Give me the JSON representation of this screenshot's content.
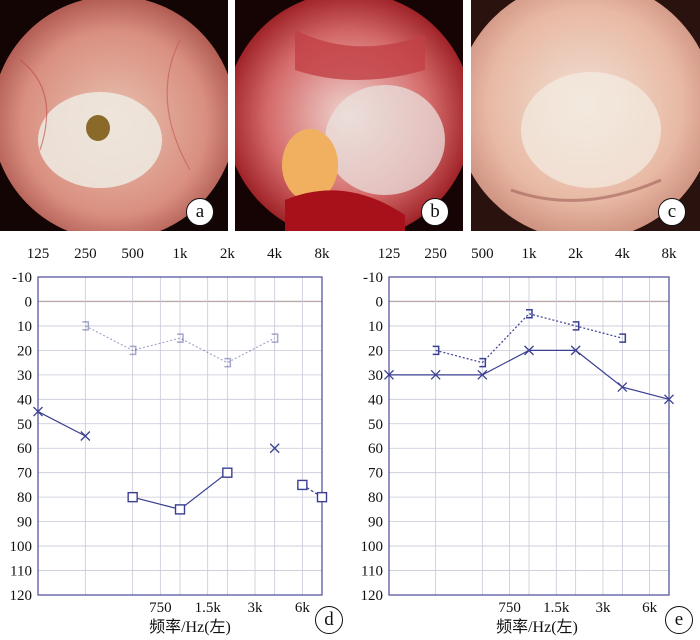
{
  "photos": [
    {
      "label": "a"
    },
    {
      "label": "b"
    },
    {
      "label": "c"
    }
  ],
  "colors": {
    "series": "#3a3f8f",
    "grid": "#c8c8d8",
    "frame": "#4a4a9a",
    "zero_line": "#b9a9a9"
  },
  "chart_data": [
    {
      "type": "line",
      "panel_label": "d",
      "x_top_ticks": [
        "125",
        "250",
        "500",
        "1k",
        "2k",
        "4k",
        "8k"
      ],
      "x_bottom_ticks": [
        "750",
        "1.5k",
        "3k",
        "6k"
      ],
      "y_ticks": [
        "-10",
        "0",
        "10",
        "20",
        "30",
        "40",
        "50",
        "60",
        "70",
        "80",
        "90",
        "100",
        "110",
        "120"
      ],
      "ylim": [
        -10,
        120
      ],
      "y_inverted": true,
      "xlabel": "频率/Hz(左)",
      "series": [
        {
          "marker": "bracket",
          "style": "dotted-light",
          "points": [
            [
              250,
              10
            ],
            [
              500,
              20
            ],
            [
              1000,
              15
            ],
            [
              2000,
              25
            ],
            [
              4000,
              15
            ]
          ]
        },
        {
          "marker": "x",
          "style": "solid",
          "points": [
            [
              125,
              45
            ],
            [
              250,
              55
            ]
          ]
        },
        {
          "marker": "square",
          "style": "solid",
          "points": [
            [
              500,
              80
            ],
            [
              1000,
              85
            ],
            [
              2000,
              70
            ]
          ]
        },
        {
          "marker": "x",
          "style": "solid",
          "points": [
            [
              4000,
              60
            ]
          ]
        },
        {
          "marker": "square",
          "style": "dashed",
          "points": [
            [
              6000,
              75
            ],
            [
              8000,
              80
            ]
          ]
        }
      ]
    },
    {
      "type": "line",
      "panel_label": "e",
      "x_top_ticks": [
        "125",
        "250",
        "500",
        "1k",
        "2k",
        "4k",
        "8k"
      ],
      "x_bottom_ticks": [
        "750",
        "1.5k",
        "3k",
        "6k"
      ],
      "y_ticks": [
        "-10",
        "0",
        "10",
        "20",
        "30",
        "40",
        "50",
        "60",
        "70",
        "80",
        "90",
        "100",
        "110",
        "120"
      ],
      "ylim": [
        -10,
        120
      ],
      "y_inverted": true,
      "xlabel": "频率/Hz(左)",
      "series": [
        {
          "marker": "bracket",
          "style": "dotted",
          "points": [
            [
              250,
              20
            ],
            [
              500,
              25
            ],
            [
              1000,
              5
            ],
            [
              2000,
              10
            ],
            [
              4000,
              15
            ]
          ]
        },
        {
          "marker": "x",
          "style": "solid",
          "points": [
            [
              125,
              30
            ],
            [
              250,
              30
            ],
            [
              500,
              30
            ],
            [
              1000,
              20
            ],
            [
              2000,
              20
            ],
            [
              4000,
              35
            ],
            [
              8000,
              40
            ]
          ]
        }
      ]
    }
  ]
}
